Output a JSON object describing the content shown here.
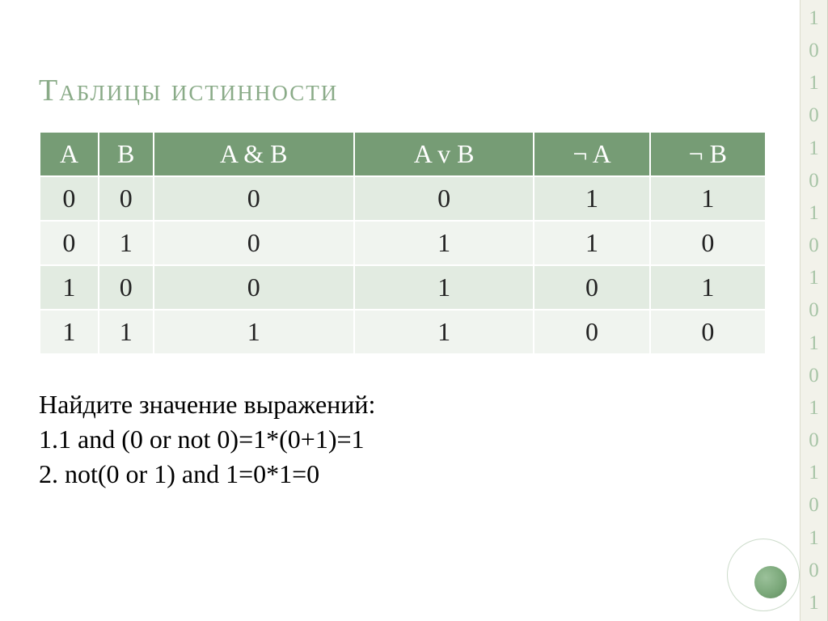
{
  "title": "Таблицы истинности",
  "table": {
    "type": "table",
    "header_bg": "#769c75",
    "header_fg": "#ffffff",
    "row_colors": [
      "#e2ebe1",
      "#f0f4ef",
      "#e2ebe1",
      "#f0f4ef"
    ],
    "cell_fontsize": 32,
    "columns": [
      "A",
      "B",
      "A & B",
      "A v B",
      "¬ A",
      "¬ B"
    ],
    "rows": [
      [
        "0",
        "0",
        "0",
        "0",
        "1",
        "1"
      ],
      [
        "0",
        "1",
        "0",
        "1",
        "1",
        "0"
      ],
      [
        "1",
        "0",
        "0",
        "1",
        "0",
        "1"
      ],
      [
        "1",
        "1",
        "1",
        "1",
        "0",
        "0"
      ]
    ]
  },
  "exercises": {
    "heading": "Найдите значение выражений:",
    "line1": "1.1 and (0 or not 0)=1*(0+1)=1",
    "line2": "2. not(0 or 1) and 1=0*1=0"
  },
  "sidebar": {
    "digits": [
      "1",
      "0",
      "1",
      "0",
      "1",
      "0",
      "1",
      "0",
      "1",
      "0",
      "1",
      "0",
      "1",
      "0",
      "1",
      "0",
      "1",
      "0",
      "1"
    ],
    "bg": "#f2f2ea",
    "fg": "#a7c4a6"
  },
  "accent": {
    "circle_color": "#7ba87a",
    "arc_color": "#cddccb"
  }
}
